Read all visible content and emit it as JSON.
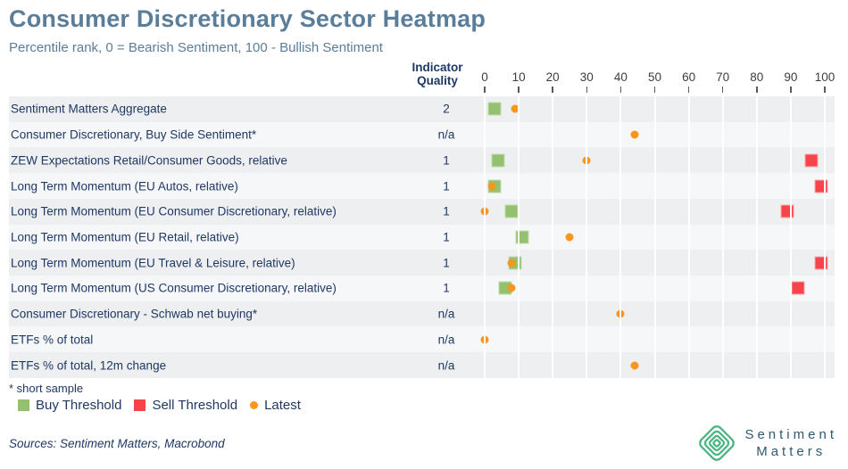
{
  "header": {
    "title": "Consumer Discretionary Sector Heatmap",
    "subtitle": "Percentile rank, 0 = Bearish Sentiment, 100 - Bullish Sentiment"
  },
  "table": {
    "quality_header_line1": "Indicator",
    "quality_header_line2": "Quality"
  },
  "chart_data": {
    "type": "scatter",
    "title": "Consumer Discretionary Sector Heatmap",
    "subtitle": "Percentile rank, 0 = Bearish Sentiment, 100 - Bullish Sentiment",
    "xlabel": "Percentile rank",
    "xlim": [
      0,
      100
    ],
    "xticks": [
      0,
      10,
      20,
      30,
      40,
      50,
      60,
      70,
      80,
      90,
      100
    ],
    "grid": true,
    "legend_position": "bottom",
    "series_meta": {
      "buy": "Buy Threshold",
      "sell": "Sell Threshold",
      "latest": "Latest"
    },
    "rows": [
      {
        "label": "Sentiment Matters Aggregate",
        "quality": "2",
        "buy": 3,
        "sell": null,
        "latest": 9
      },
      {
        "label": "Consumer Discretionary, Buy Side Sentiment*",
        "quality": "n/a",
        "buy": null,
        "sell": null,
        "latest": 44
      },
      {
        "label": "ZEW Expectations Retail/Consumer Goods, relative",
        "quality": "1",
        "buy": 4,
        "sell": 96,
        "latest": 30
      },
      {
        "label": "Long Term Momentum (EU Autos, relative)",
        "quality": "1",
        "buy": 3,
        "sell": 99,
        "latest": 2
      },
      {
        "label": "Long Term Momentum (EU Consumer Discretionary, relative)",
        "quality": "1",
        "buy": 8,
        "sell": 89,
        "latest": 0
      },
      {
        "label": "Long Term Momentum (EU Retail, relative)",
        "quality": "1",
        "buy": 11,
        "sell": null,
        "latest": 25
      },
      {
        "label": "Long Term Momentum (EU Travel & Leisure, relative)",
        "quality": "1",
        "buy": 9,
        "sell": 99,
        "latest": 8
      },
      {
        "label": "Long Term Momentum (US Consumer Discretionary, relative)",
        "quality": "1",
        "buy": 6,
        "sell": 92,
        "latest": 8
      },
      {
        "label": "Consumer Discretionary - Schwab net buying*",
        "quality": "n/a",
        "buy": null,
        "sell": null,
        "latest": 40
      },
      {
        "label": "ETFs % of total",
        "quality": "n/a",
        "buy": null,
        "sell": null,
        "latest": 0
      },
      {
        "label": "ETFs % of total, 12m change",
        "quality": "n/a",
        "buy": null,
        "sell": null,
        "latest": 44
      }
    ]
  },
  "footnote": "* short sample",
  "legend": {
    "buy_label": "Buy Threshold",
    "sell_label": "Sell Threshold",
    "latest_label": "Latest"
  },
  "sources": "Sources: Sentiment Matters, Macrobond",
  "logo": {
    "line1": "Sentiment",
    "line2": "Matters"
  },
  "colors": {
    "buy": "#94c16f",
    "sell": "#f7434a",
    "latest": "#f8961e",
    "title": "#5a7d9a",
    "text": "#1f3864",
    "band_dark": "#edeff1",
    "band_light": "#f6f7f8",
    "logo_green": "#4db583",
    "logo_text": "#2d5a72"
  }
}
